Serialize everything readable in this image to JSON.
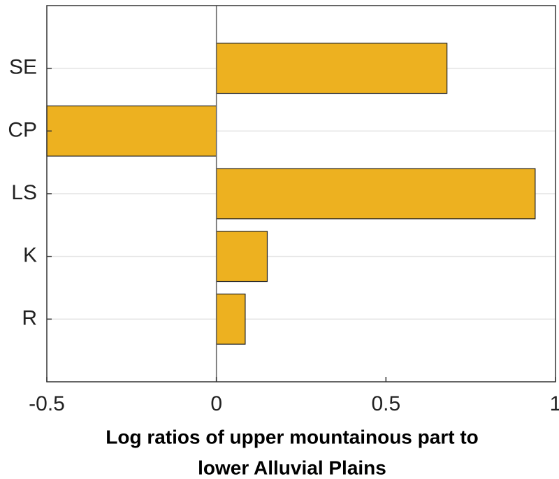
{
  "chart_data": {
    "type": "barh",
    "categories": [
      "SE",
      "CP",
      "LS",
      "K",
      "R"
    ],
    "values": [
      0.68,
      -0.5,
      0.94,
      0.15,
      0.085
    ],
    "color": "#EDB120",
    "xlim": [
      -0.5,
      1
    ],
    "xticks": [
      -0.5,
      0,
      0.5,
      1
    ],
    "grid": true,
    "xlabel": [
      "Log ratios of upper mountainous part to",
      "lower Alluvial Plains"
    ]
  }
}
